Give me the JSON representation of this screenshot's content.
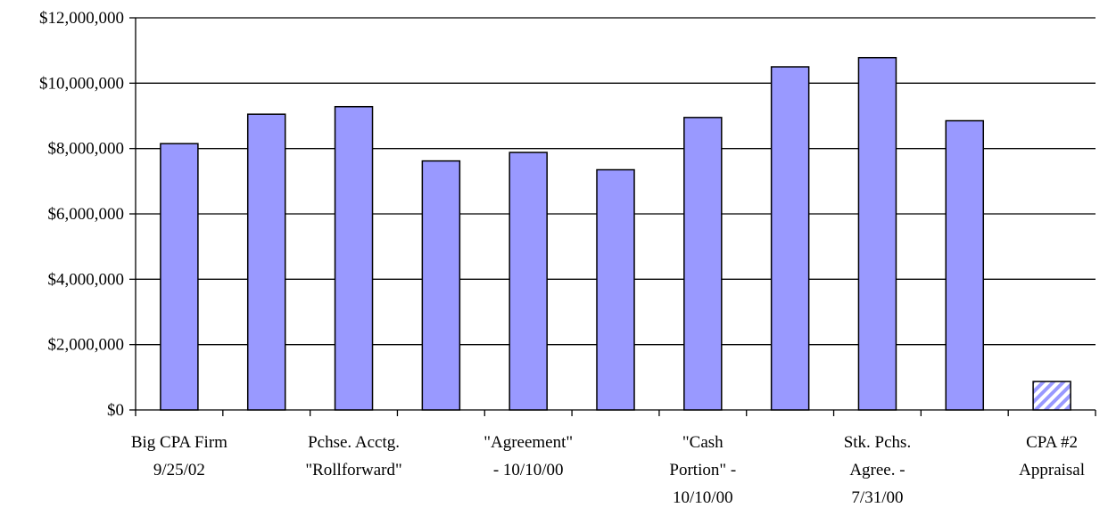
{
  "chart_data": {
    "type": "bar",
    "title": "",
    "xlabel": "",
    "ylabel": "",
    "ylim": [
      0,
      12000000
    ],
    "y_ticks": [
      0,
      2000000,
      4000000,
      6000000,
      8000000,
      10000000,
      12000000
    ],
    "y_tick_labels": [
      "$0",
      "$2,000,000",
      "$4,000,000",
      "$6,000,000",
      "$8,000,000",
      "$10,000,000",
      "$12,000,000"
    ],
    "grid": "horizontal",
    "legend": "none",
    "categories": [
      "Big CPA Firm 9/25/02",
      "",
      "Pchse. Acctg. \"Rollforward\"",
      "",
      "\"Agreement\" - 10/10/00",
      "",
      "\"Cash Portion\" - 10/10/00",
      "",
      "Stk. Pchs. Agree. - 7/31/00",
      "",
      "CPA #2 Appraisal"
    ],
    "category_label_lines": [
      [
        "Big CPA Firm",
        "9/25/02"
      ],
      [],
      [
        "Pchse. Acctg.",
        "\"Rollforward\""
      ],
      [],
      [
        "\"Agreement\"",
        "- 10/10/00"
      ],
      [],
      [
        "\"Cash",
        "Portion\" -",
        "10/10/00"
      ],
      [],
      [
        "Stk. Pchs.",
        "Agree. -",
        "7/31/00"
      ],
      [],
      [
        "CPA #2",
        "Appraisal"
      ]
    ],
    "values": [
      8150000,
      9050000,
      9280000,
      7620000,
      7880000,
      7350000,
      8950000,
      10500000,
      10780000,
      8850000,
      870000
    ],
    "styles": [
      "solid",
      "solid",
      "solid",
      "solid",
      "solid",
      "solid",
      "solid",
      "solid",
      "solid",
      "solid",
      "hatched"
    ],
    "colors": {
      "bar_fill": "#9999ff",
      "bar_stroke": "#000000",
      "hatch_line": "#9999ff",
      "grid": "#000000",
      "axis": "#000000"
    }
  }
}
